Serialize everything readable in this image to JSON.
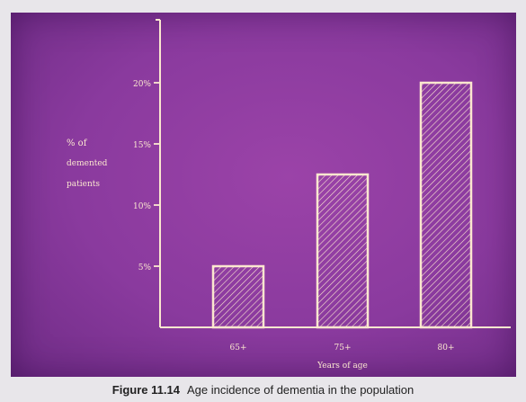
{
  "caption": {
    "figure_label": "Figure 11.14",
    "text": "Age incidence of dementia in the population"
  },
  "colors": {
    "background": "#8a3a9e",
    "foreground": "#fbe7cf",
    "caption_text": "#222222"
  },
  "chart_data": {
    "type": "bar",
    "categories": [
      "65+",
      "75+",
      "80+"
    ],
    "values": [
      5,
      12.5,
      20
    ],
    "title": "",
    "xlabel": "Years of age",
    "ylabel_lines": [
      "% of",
      "demented",
      "patients"
    ],
    "ylim": [
      0,
      24
    ],
    "yticks": [
      {
        "value": 5,
        "label": "5%"
      },
      {
        "value": 10,
        "label": "10%"
      },
      {
        "value": 15,
        "label": "15%"
      },
      {
        "value": 20,
        "label": "20%"
      }
    ],
    "bar_fill": "diagonal-hatch",
    "grid": false,
    "legend": "none"
  }
}
